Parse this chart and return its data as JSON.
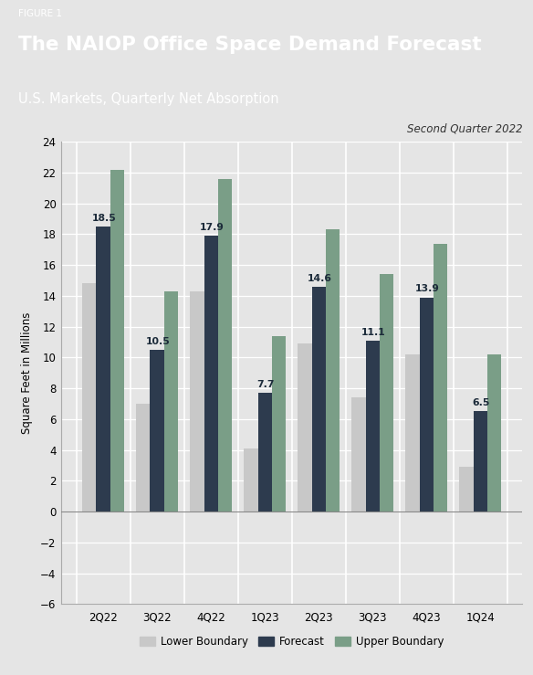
{
  "figure_label": "FIGURE 1",
  "title": "The NAIOP Office Space Demand Forecast",
  "subtitle": "U.S. Markets, Quarterly Net Absorption",
  "annotation": "Second Quarter 2022",
  "ylabel": "Square Feet in Millions",
  "categories": [
    "2Q22",
    "3Q22",
    "4Q22",
    "1Q23",
    "2Q23",
    "3Q23",
    "4Q23",
    "1Q24"
  ],
  "lower_boundary": [
    14.8,
    7.0,
    14.3,
    4.1,
    10.9,
    7.4,
    10.2,
    2.9
  ],
  "forecast": [
    18.5,
    10.5,
    17.9,
    7.7,
    14.6,
    11.1,
    13.9,
    6.5
  ],
  "upper_boundary": [
    22.2,
    14.3,
    21.6,
    11.4,
    18.3,
    15.4,
    17.4,
    10.2
  ],
  "forecast_labels": [
    "18.5",
    "10.5",
    "17.9",
    "7.7",
    "14.6",
    "11.1",
    "13.9",
    "6.5"
  ],
  "ylim": [
    -6,
    24
  ],
  "yticks": [
    -6,
    -4,
    -2,
    0,
    2,
    4,
    6,
    8,
    10,
    12,
    14,
    16,
    18,
    20,
    22,
    24
  ],
  "color_lower": "#c8c8c8",
  "color_forecast": "#2d3b4e",
  "color_upper": "#7a9e87",
  "header_bg": "#606870",
  "chart_bg": "#e5e5e5",
  "bar_width": 0.26,
  "legend_labels": [
    "Lower Boundary",
    "Forecast",
    "Upper Boundary"
  ]
}
